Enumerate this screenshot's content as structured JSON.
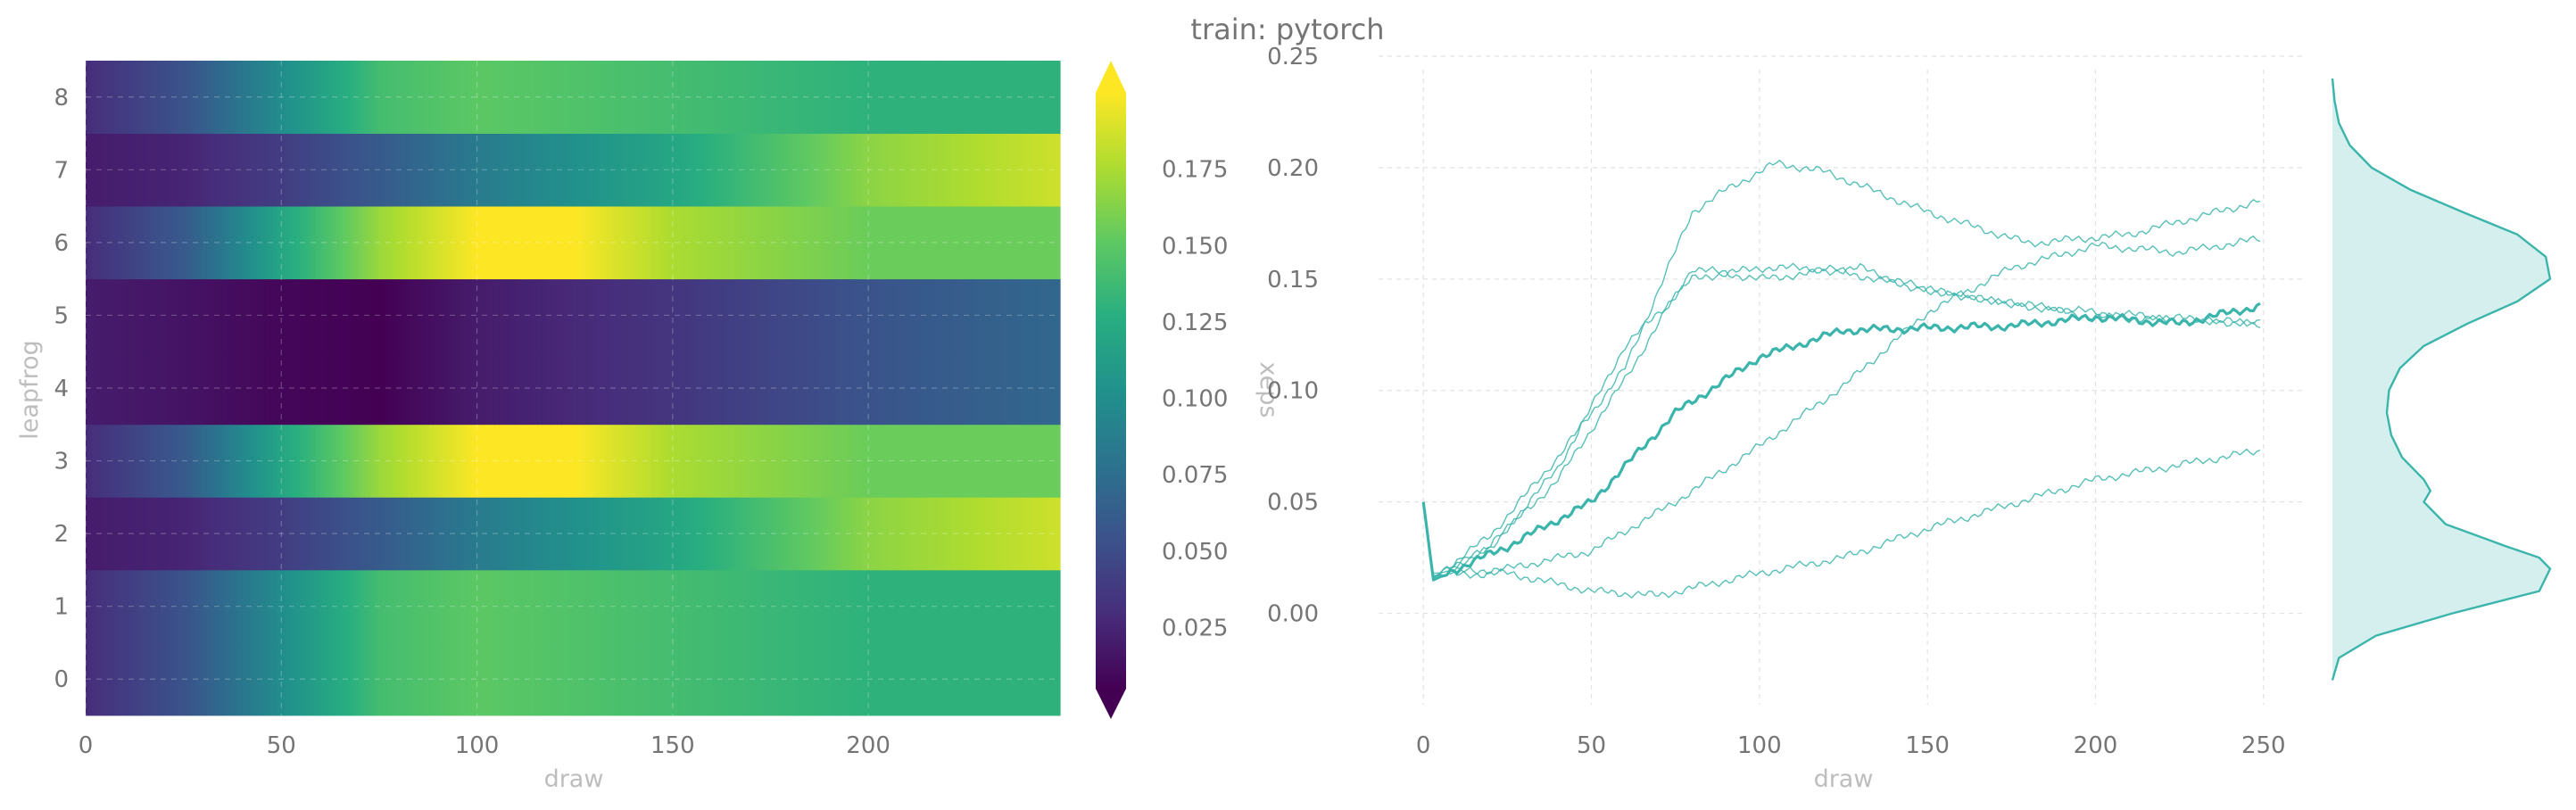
{
  "suptitle": "train: pytorch",
  "chart_data": [
    {
      "type": "heatmap",
      "xlabel": "draw",
      "ylabel": "leapfrog",
      "x_ticks": [
        0,
        50,
        100,
        150,
        200
      ],
      "y_ticks": [
        0,
        1,
        2,
        3,
        4,
        5,
        6,
        7,
        8
      ],
      "xlim": [
        0,
        249
      ],
      "colormap": "viridis",
      "colorbar": {
        "label": "xeps",
        "range": [
          0.005,
          0.2
        ],
        "ticks": [
          0.025,
          0.05,
          0.075,
          0.1,
          0.125,
          0.15,
          0.175
        ],
        "tick_labels": [
          "0.025",
          "0.050",
          "0.075",
          "0.100",
          "0.125",
          "0.150",
          "0.175"
        ],
        "extend": "both"
      },
      "rows": [
        {
          "leapfrog": 0,
          "x": [
            0,
            25,
            50,
            75,
            100,
            150,
            200,
            249
          ],
          "values": [
            0.03,
            0.055,
            0.1,
            0.14,
            0.15,
            0.14,
            0.13,
            0.13
          ]
        },
        {
          "leapfrog": 1,
          "x": [
            0,
            25,
            50,
            75,
            100,
            150,
            200,
            249
          ],
          "values": [
            0.03,
            0.055,
            0.1,
            0.14,
            0.15,
            0.14,
            0.13,
            0.13
          ]
        },
        {
          "leapfrog": 2,
          "x": [
            0,
            25,
            50,
            75,
            100,
            150,
            200,
            249
          ],
          "values": [
            0.02,
            0.025,
            0.04,
            0.06,
            0.085,
            0.12,
            0.165,
            0.185
          ]
        },
        {
          "leapfrog": 3,
          "x": [
            0,
            25,
            50,
            75,
            100,
            125,
            150,
            200,
            249
          ],
          "values": [
            0.03,
            0.06,
            0.12,
            0.17,
            0.2,
            0.2,
            0.175,
            0.155,
            0.155
          ]
        },
        {
          "leapfrog": 4,
          "x": [
            0,
            25,
            50,
            75,
            100,
            150,
            200,
            249
          ],
          "values": [
            0.02,
            0.015,
            0.008,
            0.005,
            0.02,
            0.035,
            0.055,
            0.07
          ]
        },
        {
          "leapfrog": 5,
          "x": [
            0,
            25,
            50,
            75,
            100,
            150,
            200,
            249
          ],
          "values": [
            0.02,
            0.015,
            0.008,
            0.005,
            0.02,
            0.035,
            0.055,
            0.07
          ]
        },
        {
          "leapfrog": 6,
          "x": [
            0,
            25,
            50,
            75,
            100,
            125,
            150,
            200,
            249
          ],
          "values": [
            0.03,
            0.06,
            0.12,
            0.17,
            0.2,
            0.2,
            0.175,
            0.155,
            0.155
          ]
        },
        {
          "leapfrog": 7,
          "x": [
            0,
            25,
            50,
            75,
            100,
            150,
            200,
            249
          ],
          "values": [
            0.02,
            0.025,
            0.04,
            0.06,
            0.085,
            0.12,
            0.165,
            0.185
          ]
        },
        {
          "leapfrog": 8,
          "x": [
            0,
            25,
            50,
            75,
            100,
            150,
            200,
            249
          ],
          "values": [
            0.03,
            0.055,
            0.1,
            0.14,
            0.15,
            0.14,
            0.13,
            0.13
          ]
        }
      ]
    },
    {
      "type": "line",
      "xlabel": "draw",
      "ylabel": "",
      "xlim": [
        -12,
        262
      ],
      "ylim": [
        -0.045,
        0.252
      ],
      "x_ticks": [
        0,
        50,
        100,
        150,
        200,
        250
      ],
      "y_ticks": [
        0.0,
        0.05,
        0.1,
        0.15,
        0.2,
        0.25
      ],
      "y_tick_labels": [
        "0.00",
        "0.05",
        "0.10",
        "0.15",
        "0.20",
        "0.25"
      ],
      "grid": true,
      "color": "#3bb5ab",
      "series": [
        {
          "role": "mean",
          "x": [
            0,
            3,
            10,
            25,
            50,
            75,
            100,
            125,
            150,
            175,
            200,
            225,
            249
          ],
          "values": [
            0.05,
            0.015,
            0.02,
            0.03,
            0.05,
            0.09,
            0.115,
            0.127,
            0.128,
            0.129,
            0.133,
            0.13,
            0.138
          ]
        },
        {
          "role": "sample",
          "x": [
            3,
            20,
            40,
            60,
            80,
            90,
            105,
            120,
            150,
            180,
            210,
            249
          ],
          "values": [
            0.016,
            0.035,
            0.07,
            0.11,
            0.18,
            0.19,
            0.202,
            0.198,
            0.18,
            0.166,
            0.17,
            0.185
          ]
        },
        {
          "role": "sample",
          "x": [
            3,
            20,
            40,
            60,
            80,
            100,
            130,
            150,
            200,
            249
          ],
          "values": [
            0.016,
            0.03,
            0.06,
            0.105,
            0.155,
            0.15,
            0.155,
            0.145,
            0.133,
            0.13
          ]
        },
        {
          "role": "sample",
          "x": [
            3,
            25,
            50,
            75,
            100,
            125,
            150,
            175,
            200,
            225,
            249
          ],
          "values": [
            0.018,
            0.02,
            0.028,
            0.05,
            0.075,
            0.102,
            0.135,
            0.155,
            0.165,
            0.162,
            0.168
          ]
        },
        {
          "role": "sample",
          "x": [
            3,
            25,
            50,
            70,
            100,
            125,
            150,
            200,
            249
          ],
          "values": [
            0.017,
            0.018,
            0.01,
            0.008,
            0.018,
            0.025,
            0.038,
            0.06,
            0.073
          ]
        },
        {
          "role": "sample",
          "x": [
            3,
            20,
            40,
            60,
            80,
            100,
            120,
            140,
            170,
            200,
            249
          ],
          "values": [
            0.016,
            0.03,
            0.065,
            0.12,
            0.15,
            0.155,
            0.155,
            0.148,
            0.14,
            0.135,
            0.13
          ]
        }
      ],
      "density": {
        "type": "area",
        "y": [
          -0.03,
          -0.02,
          -0.01,
          0.0,
          0.01,
          0.02,
          0.025,
          0.03,
          0.04,
          0.05,
          0.055,
          0.06,
          0.07,
          0.08,
          0.09,
          0.1,
          0.11,
          0.12,
          0.13,
          0.14,
          0.15,
          0.16,
          0.17,
          0.18,
          0.19,
          0.2,
          0.21,
          0.22,
          0.23,
          0.24
        ],
        "values": [
          0.0,
          0.03,
          0.2,
          0.55,
          0.95,
          1.0,
          0.95,
          0.8,
          0.52,
          0.42,
          0.45,
          0.42,
          0.32,
          0.27,
          0.25,
          0.26,
          0.31,
          0.42,
          0.62,
          0.85,
          1.0,
          0.98,
          0.85,
          0.6,
          0.36,
          0.18,
          0.08,
          0.03,
          0.01,
          0.0
        ]
      }
    }
  ]
}
